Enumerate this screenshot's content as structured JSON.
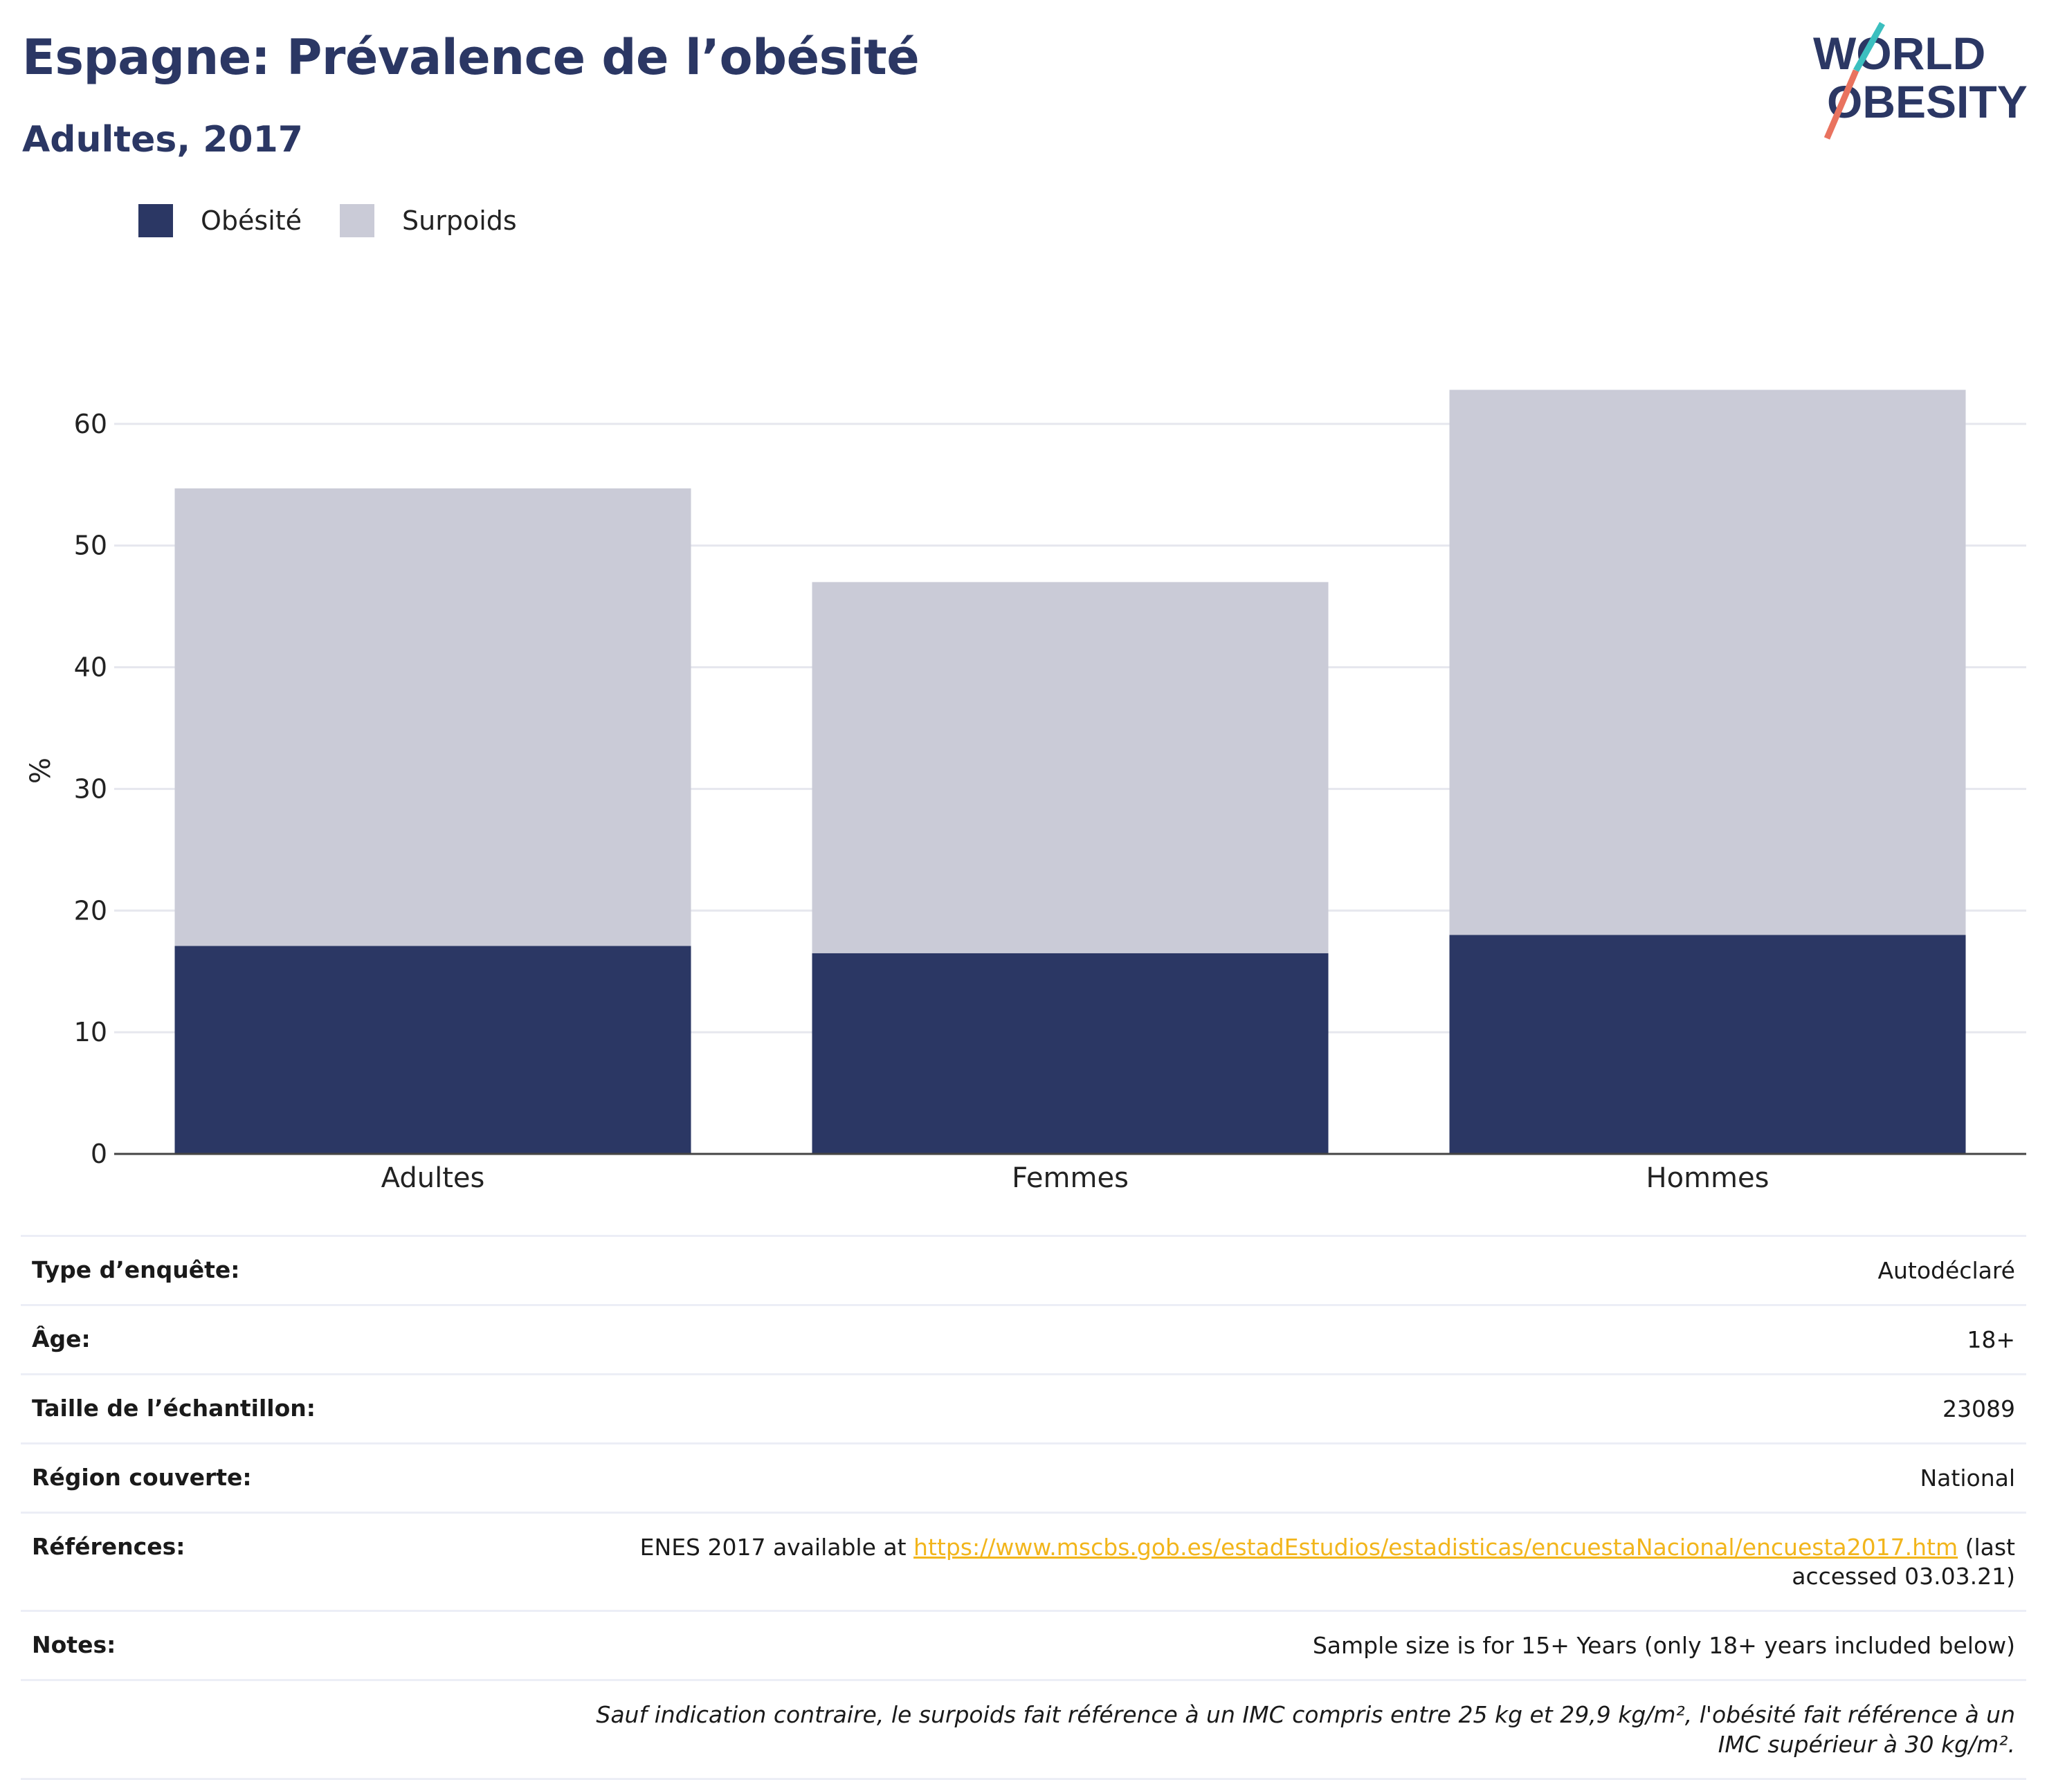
{
  "header": {
    "title": "Espagne: Prévalence de l’obésité",
    "subtitle": "Adultes, 2017"
  },
  "logo": {
    "line1": "WORLD",
    "line2": "OBESITY",
    "slash_colors": [
      "#3bbfbf",
      "#e9735f"
    ]
  },
  "colors": {
    "obesity": "#2b3764",
    "overweight": "#cacbd7",
    "title": "#2b3764",
    "link": "#f2b51b"
  },
  "legend": [
    {
      "label": "Obésité",
      "color": "#2b3764"
    },
    {
      "label": "Surpoids",
      "color": "#cacbd7"
    }
  ],
  "chart_data": {
    "type": "bar",
    "stacked": true,
    "categories": [
      "Adultes",
      "Femmes",
      "Hommes"
    ],
    "series": [
      {
        "name": "Obésité",
        "values": [
          17.1,
          16.5,
          18.0
        ],
        "color": "#2b3764"
      },
      {
        "name": "Surpoids",
        "values": [
          37.6,
          30.5,
          44.8
        ],
        "color": "#cacbd7"
      }
    ],
    "ylabel": "%",
    "ylim": [
      0,
      63
    ],
    "yticks": [
      0,
      10,
      20,
      30,
      40,
      50,
      60
    ],
    "grid": true,
    "legend_position": "top-left"
  },
  "info": {
    "rows": [
      {
        "label": "Type d’enquête:",
        "value": "Autodéclaré"
      },
      {
        "label": "Âge:",
        "value": "18+"
      },
      {
        "label": "Taille de l’échantillon:",
        "value": "23089"
      },
      {
        "label": "Région couverte:",
        "value": "National"
      }
    ],
    "references": {
      "label": "Références:",
      "prefix": "ENES 2017 available at ",
      "link": "https://www.mscbs.gob.es/estadEstudios/estadisticas/encuestaNacional/encuesta2017.htm",
      "suffix": " (last accessed 03.03.21)"
    },
    "notes": {
      "label": "Notes:",
      "value": "Sample size is for 15+ Years (only 18+ years included below)"
    },
    "footnote": "Sauf indication contraire, le surpoids fait référence à un IMC compris entre 25 kg et 29,9 kg/m², l'obésité fait référence à un IMC supérieur à 30 kg/m²."
  }
}
